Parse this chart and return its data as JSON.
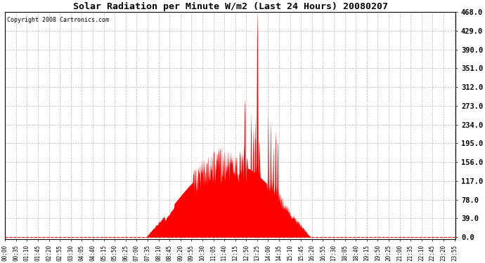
{
  "title": "Solar Radiation per Minute W/m2 (Last 24 Hours) 20080207",
  "copyright_text": "Copyright 2008 Cartronics.com",
  "fill_color": "#FF0000",
  "background_color": "#FFFFFF",
  "grid_color": "#AAAAAA",
  "dashed_line_color": "#FF0000",
  "y_ticks": [
    0.0,
    39.0,
    78.0,
    117.0,
    156.0,
    195.0,
    234.0,
    273.0,
    312.0,
    351.0,
    390.0,
    429.0,
    468.0
  ],
  "ylim": [
    -5,
    468
  ],
  "total_minutes": 1440,
  "sunrise_minute": 450,
  "sunset_minute": 980,
  "x_tick_labels": [
    "00:00",
    "00:35",
    "01:10",
    "01:45",
    "02:20",
    "02:55",
    "03:30",
    "04:05",
    "04:40",
    "05:15",
    "05:50",
    "06:25",
    "07:00",
    "07:35",
    "08:10",
    "08:45",
    "09:20",
    "09:55",
    "10:30",
    "11:05",
    "11:40",
    "12:15",
    "12:50",
    "13:25",
    "14:00",
    "14:35",
    "15:10",
    "15:45",
    "16:20",
    "16:55",
    "17:30",
    "18:05",
    "18:40",
    "19:15",
    "19:50",
    "20:25",
    "21:00",
    "21:35",
    "22:10",
    "22:45",
    "23:20",
    "23:55"
  ],
  "x_tick_positions": [
    0,
    35,
    70,
    105,
    140,
    175,
    210,
    245,
    280,
    315,
    350,
    385,
    420,
    455,
    490,
    525,
    560,
    595,
    630,
    665,
    700,
    735,
    770,
    805,
    840,
    875,
    910,
    945,
    980,
    1015,
    1050,
    1085,
    1120,
    1155,
    1190,
    1225,
    1260,
    1295,
    1330,
    1365,
    1400,
    1435
  ]
}
